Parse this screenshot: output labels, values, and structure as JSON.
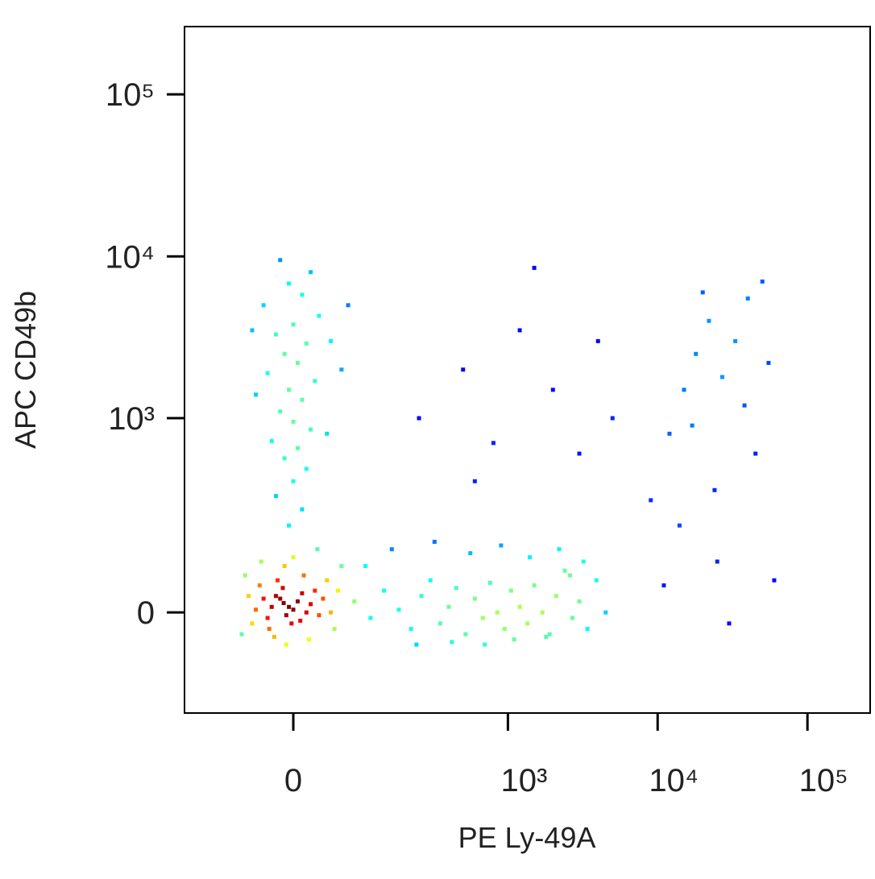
{
  "chart_data": {
    "type": "scatter",
    "x_label": "PE Ly-49A",
    "y_label": "APC CD49b",
    "xscale": "biexponential",
    "yscale": "biexponential",
    "xlim": [
      -190,
      262144
    ],
    "ylim": [
      -250,
      262144
    ],
    "xticks": [
      0,
      {
        "value": 1000,
        "label": "10³"
      },
      {
        "value": 10000,
        "label": "10⁴"
      },
      {
        "value": 100000,
        "label": "10⁵"
      }
    ],
    "yticks": [
      0,
      {
        "value": 1000,
        "label": "10³"
      },
      {
        "value": 10000,
        "label": "10⁴"
      },
      {
        "value": 100000,
        "label": "10⁵"
      }
    ],
    "colormap": "jet",
    "x": [
      -11,
      -5,
      -15,
      0,
      -20,
      5,
      -8,
      -25,
      10,
      -12,
      -30,
      15,
      -2,
      -18,
      20,
      -35,
      8,
      -40,
      25,
      -28,
      30,
      -45,
      12,
      -10,
      35,
      -50,
      40,
      -22,
      -55,
      45,
      0,
      -60,
      50,
      18,
      -8,
      55,
      -65,
      -38,
      60,
      28,
      -5,
      10,
      -20,
      0,
      15,
      -10,
      5,
      -25,
      20,
      0,
      -15,
      10,
      -5,
      25,
      -30,
      5,
      -10,
      15,
      -20,
      0,
      30,
      -35,
      10,
      -5,
      20,
      -15,
      45,
      60,
      -45,
      40,
      70,
      -50,
      80,
      110,
      140,
      180,
      220,
      260,
      300,
      350,
      400,
      450,
      520,
      600,
      680,
      760,
      850,
      950,
      1050,
      1200,
      1350,
      1500,
      1700,
      1900,
      2100,
      2400,
      2700,
      3000,
      3400,
      3900,
      4500,
      100,
      160,
      240,
      320,
      420,
      560,
      700,
      900,
      1100,
      1400,
      1800,
      2200,
      2600,
      3200,
      9000,
      12000,
      15000,
      18000,
      22000,
      27000,
      33000,
      40000,
      20000,
      14000,
      25000,
      30000,
      45000,
      55000,
      11000,
      17000,
      38000,
      50000,
      24000,
      60000,
      500,
      1200,
      800,
      2000,
      3000,
      1500,
      600,
      5000,
      250,
      4000
    ],
    "y": [
      17,
      10,
      25,
      5,
      30,
      20,
      -5,
      10,
      35,
      45,
      -10,
      0,
      -20,
      60,
      15,
      25,
      -15,
      50,
      40,
      -30,
      -5,
      5,
      70,
      90,
      25,
      -20,
      60,
      -45,
      30,
      0,
      110,
      70,
      -30,
      -50,
      -60,
      40,
      -40,
      100,
      90,
      130,
      200,
      260,
      320,
      400,
      480,
      560,
      650,
      720,
      850,
      950,
      1100,
      1300,
      1500,
      1700,
      1900,
      2200,
      2500,
      2900,
      3300,
      3800,
      4300,
      5000,
      5800,
      6800,
      8000,
      9500,
      3000,
      2000,
      1400,
      800,
      5000,
      3500,
      20,
      -10,
      40,
      5,
      -30,
      30,
      60,
      -20,
      10,
      45,
      -40,
      25,
      -10,
      55,
      0,
      -30,
      40,
      10,
      -20,
      50,
      0,
      -40,
      30,
      80,
      -10,
      20,
      -30,
      60,
      0,
      90,
      130,
      -60,
      150,
      -55,
      120,
      -60,
      140,
      -50,
      110,
      -45,
      130,
      70,
      100,
      300,
      800,
      1500,
      2500,
      4000,
      1800,
      3000,
      5500,
      6000,
      200,
      100,
      -20,
      600,
      2200,
      50,
      900,
      1200,
      7000,
      350,
      60,
      2000,
      3500,
      700,
      1500,
      600,
      8500,
      400,
      1000,
      1000,
      3000
    ]
  }
}
